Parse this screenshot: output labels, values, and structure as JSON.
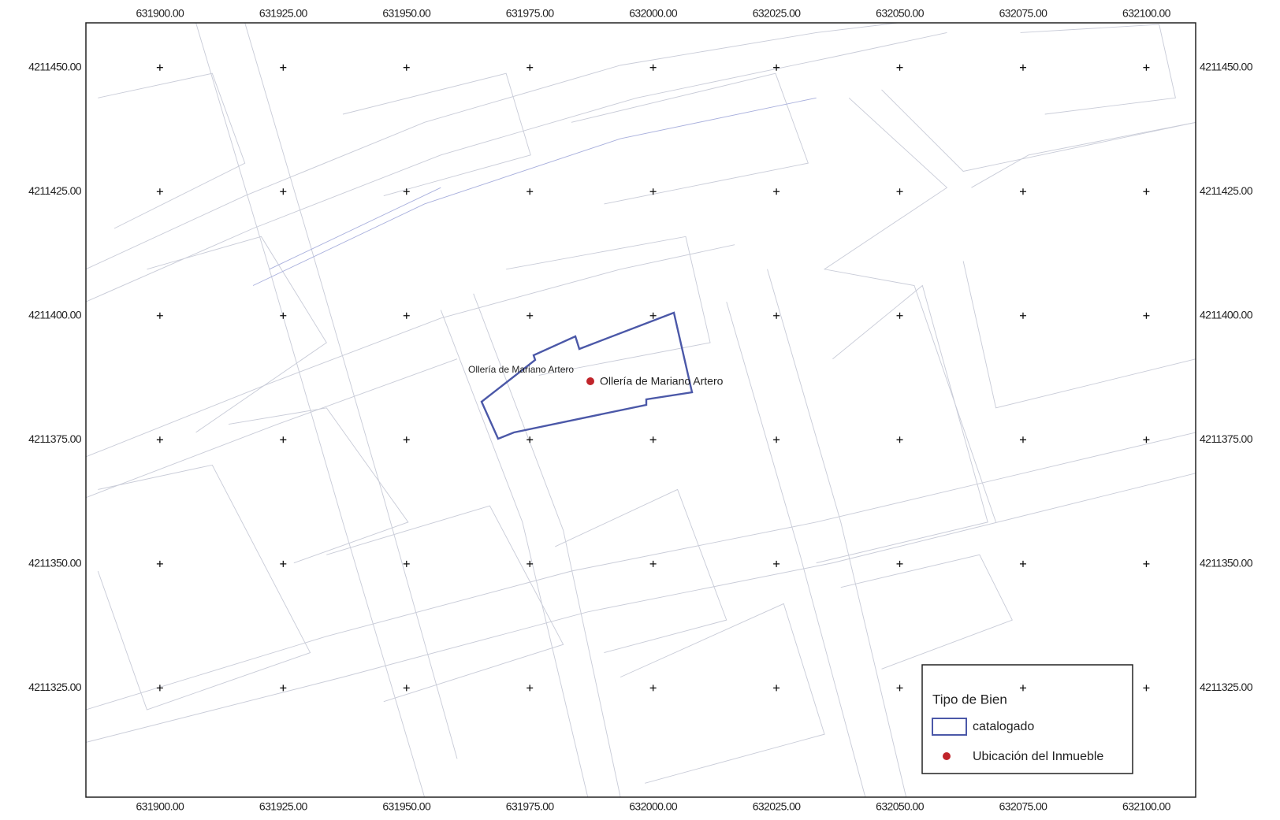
{
  "map": {
    "xlim": [
      631885,
      632110
    ],
    "ylim": [
      4211303,
      4211459
    ],
    "xticks": [
      {
        "value": 631900,
        "label": "631900.00"
      },
      {
        "value": 631925,
        "label": "631925.00"
      },
      {
        "value": 631950,
        "label": "631950.00"
      },
      {
        "value": 631975,
        "label": "631975.00"
      },
      {
        "value": 632000,
        "label": "632000.00"
      },
      {
        "value": 632025,
        "label": "632025.00"
      },
      {
        "value": 632050,
        "label": "632050.00"
      },
      {
        "value": 632075,
        "label": "632075.00"
      },
      {
        "value": 632100,
        "label": "632100.00"
      }
    ],
    "yticks": [
      {
        "value": 4211450,
        "label": "4211450.00"
      },
      {
        "value": 4211425,
        "label": "4211425.00"
      },
      {
        "value": 4211400,
        "label": "4211400.00"
      },
      {
        "value": 4211375,
        "label": "4211375.00"
      },
      {
        "value": 4211350,
        "label": "4211350.00"
      },
      {
        "value": 4211325,
        "label": "4211325.00"
      }
    ],
    "feature_labels": [
      "Ollería de Mariano Artero",
      "Ollería de Mariano Artero"
    ],
    "legend": {
      "title": "Tipo de Bien",
      "items": [
        {
          "label": "catalogado"
        },
        {
          "label": "Ubicación del Inmueble"
        }
      ]
    }
  }
}
